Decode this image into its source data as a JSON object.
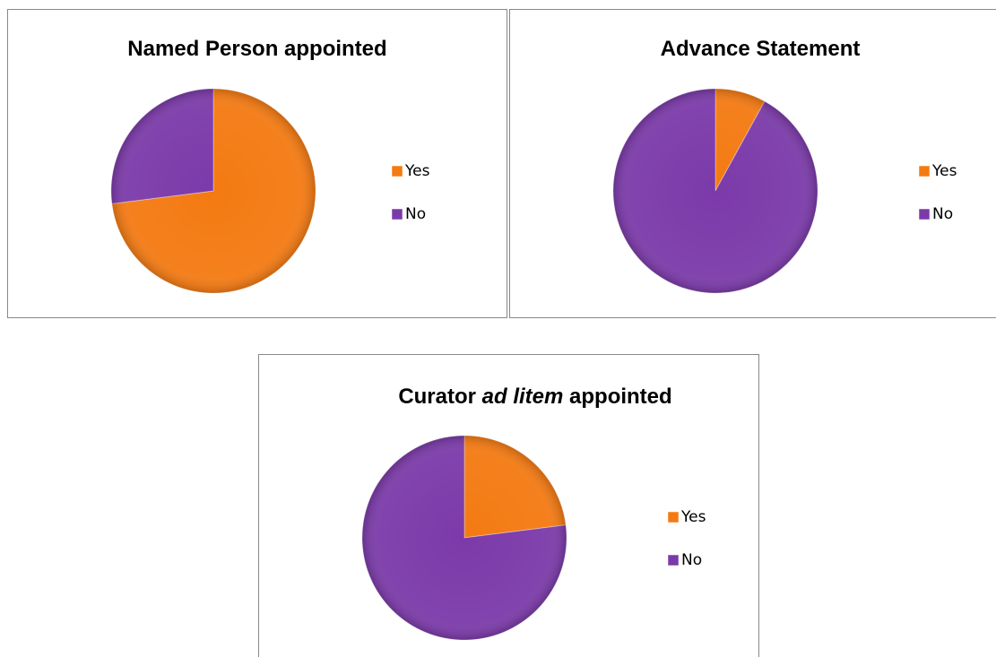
{
  "chart_data": [
    {
      "type": "pie",
      "title": "Named Person appointed",
      "categories": [
        "Yes",
        "No"
      ],
      "values": [
        73,
        27
      ],
      "colors": [
        "#f47a12",
        "#7b3aa9"
      ]
    },
    {
      "type": "pie",
      "title": "Advance Statement",
      "categories": [
        "Yes",
        "No"
      ],
      "values": [
        8,
        92
      ],
      "colors": [
        "#f47a12",
        "#7b3aa9"
      ]
    },
    {
      "type": "pie",
      "title": [
        {
          "text": "Curator "
        },
        {
          "text": "ad litem",
          "italic": true
        },
        {
          "text": " appointed"
        }
      ],
      "categories": [
        "Yes",
        "No"
      ],
      "values": [
        23,
        77
      ],
      "colors": [
        "#f47a12",
        "#7b3aa9"
      ]
    }
  ]
}
